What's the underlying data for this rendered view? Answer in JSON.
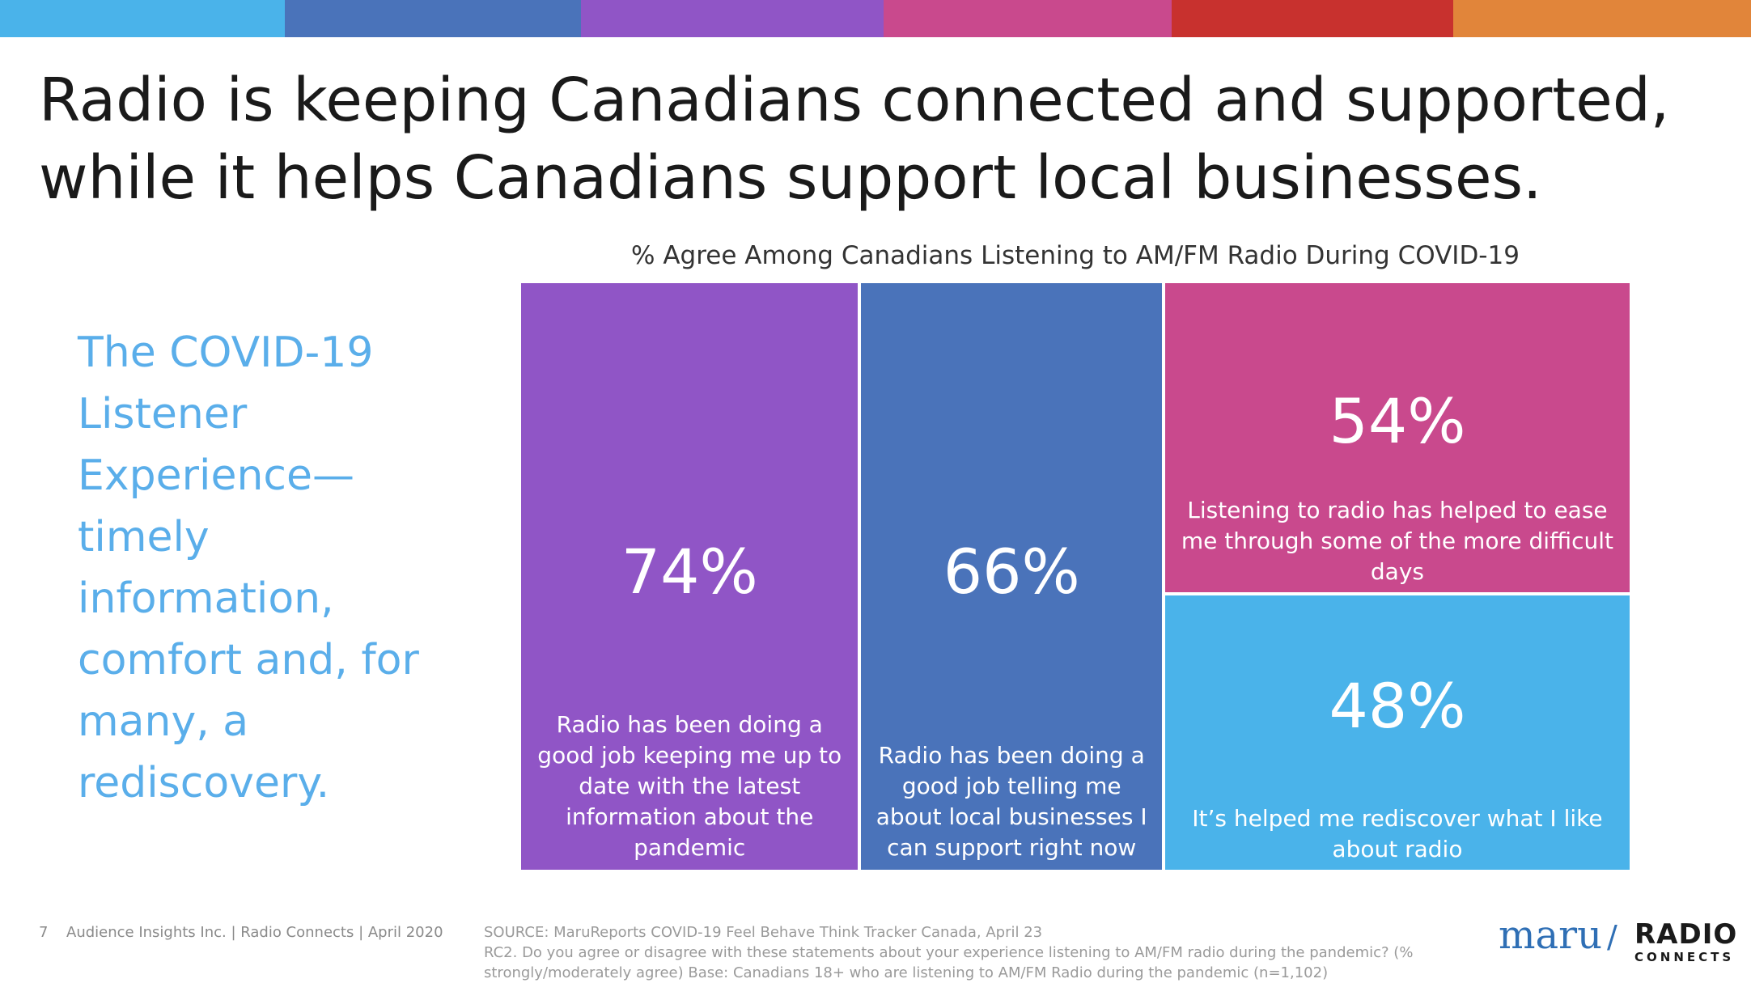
{
  "stripe_colors": [
    "#4ab3ea",
    "#4a73ba",
    "#9055c6",
    "#c9498d",
    "#c8312e",
    "#e1853a"
  ],
  "title": "Radio is keeping Canadians connected and supported, while it helps Canadians support local businesses.",
  "side_text": "The COVID-19 Listener Experience— timely information, comfort and, for many, a rediscovery.",
  "chart_data": {
    "type": "treemap",
    "title": "% Agree Among Canadians Listening to AM/FM Radio During COVID-19",
    "unit": "%",
    "items": [
      {
        "value": 74,
        "label": "74%",
        "description": "Radio has been doing a good job keeping me up to date with the latest information about the pandemic",
        "color": "#9055c6"
      },
      {
        "value": 66,
        "label": "66%",
        "description": "Radio has been doing a good job telling me about local businesses I can support right now",
        "color": "#4a73ba"
      },
      {
        "value": 54,
        "label": "54%",
        "description": "Listening to radio has helped to ease me through some of the more difficult days",
        "color": "#c9498d"
      },
      {
        "value": 48,
        "label": "48%",
        "description": "It’s helped me rediscover what I like about radio",
        "color": "#4ab3ea"
      }
    ]
  },
  "footer": {
    "page_number": "7",
    "credit": "Audience Insights Inc. | Radio Connects | April 2020",
    "source_line1": "SOURCE: MaruReports COVID-19 Feel Behave Think Tracker Canada, April 23",
    "source_line2": "RC2. Do you agree or disagree with these statements about your experience listening to AM/FM radio during the pandemic? (% strongly/moderately agree) Base: Canadians 18+ who are listening to AM/FM Radio during the pandemic (n=1,102)"
  },
  "logos": {
    "maru": "maru",
    "slash": "/",
    "radio_connects_top": "RADIO",
    "radio_connects_bottom": "CONNECTS"
  }
}
